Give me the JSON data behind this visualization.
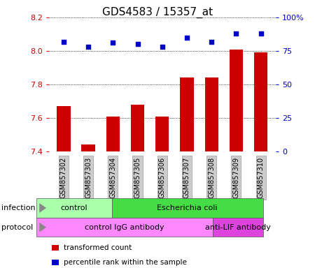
{
  "title": "GDS4583 / 15357_at",
  "samples": [
    "GSM857302",
    "GSM857303",
    "GSM857304",
    "GSM857305",
    "GSM857306",
    "GSM857307",
    "GSM857308",
    "GSM857309",
    "GSM857310"
  ],
  "bar_values": [
    7.67,
    7.44,
    7.61,
    7.68,
    7.61,
    7.84,
    7.84,
    8.01,
    7.99
  ],
  "percentile_values": [
    82,
    78,
    81,
    80,
    78,
    85,
    82,
    88,
    88
  ],
  "ylim_left": [
    7.4,
    8.2
  ],
  "ylim_right": [
    0,
    100
  ],
  "yticks_left": [
    7.4,
    7.6,
    7.8,
    8.0,
    8.2
  ],
  "yticks_right": [
    0,
    25,
    50,
    75,
    100
  ],
  "bar_color": "#cc0000",
  "dot_color": "#0000cc",
  "bar_bottom": 7.4,
  "infection_groups": [
    {
      "text": "control",
      "start": 0,
      "end": 2,
      "color": "#aaffaa"
    },
    {
      "text": "Escherichia coli",
      "start": 3,
      "end": 8,
      "color": "#44dd44"
    }
  ],
  "protocol_groups": [
    {
      "text": "control IgG antibody",
      "start": 0,
      "end": 6,
      "color": "#ff88ff"
    },
    {
      "text": "anti-LIF antibody",
      "start": 7,
      "end": 8,
      "color": "#dd44dd"
    }
  ],
  "infection_row_label": "infection",
  "protocol_row_label": "protocol",
  "legend_items": [
    {
      "color": "#cc0000",
      "label": "transformed count"
    },
    {
      "color": "#0000cc",
      "label": "percentile rank within the sample"
    }
  ],
  "grid_color": "#000000",
  "left_tick_color": "#cc0000",
  "right_tick_color": "#0000cc",
  "xticklabel_bg": "#cccccc",
  "title_fontsize": 11,
  "tick_fontsize": 8,
  "label_fontsize": 8,
  "annot_fontsize": 8
}
